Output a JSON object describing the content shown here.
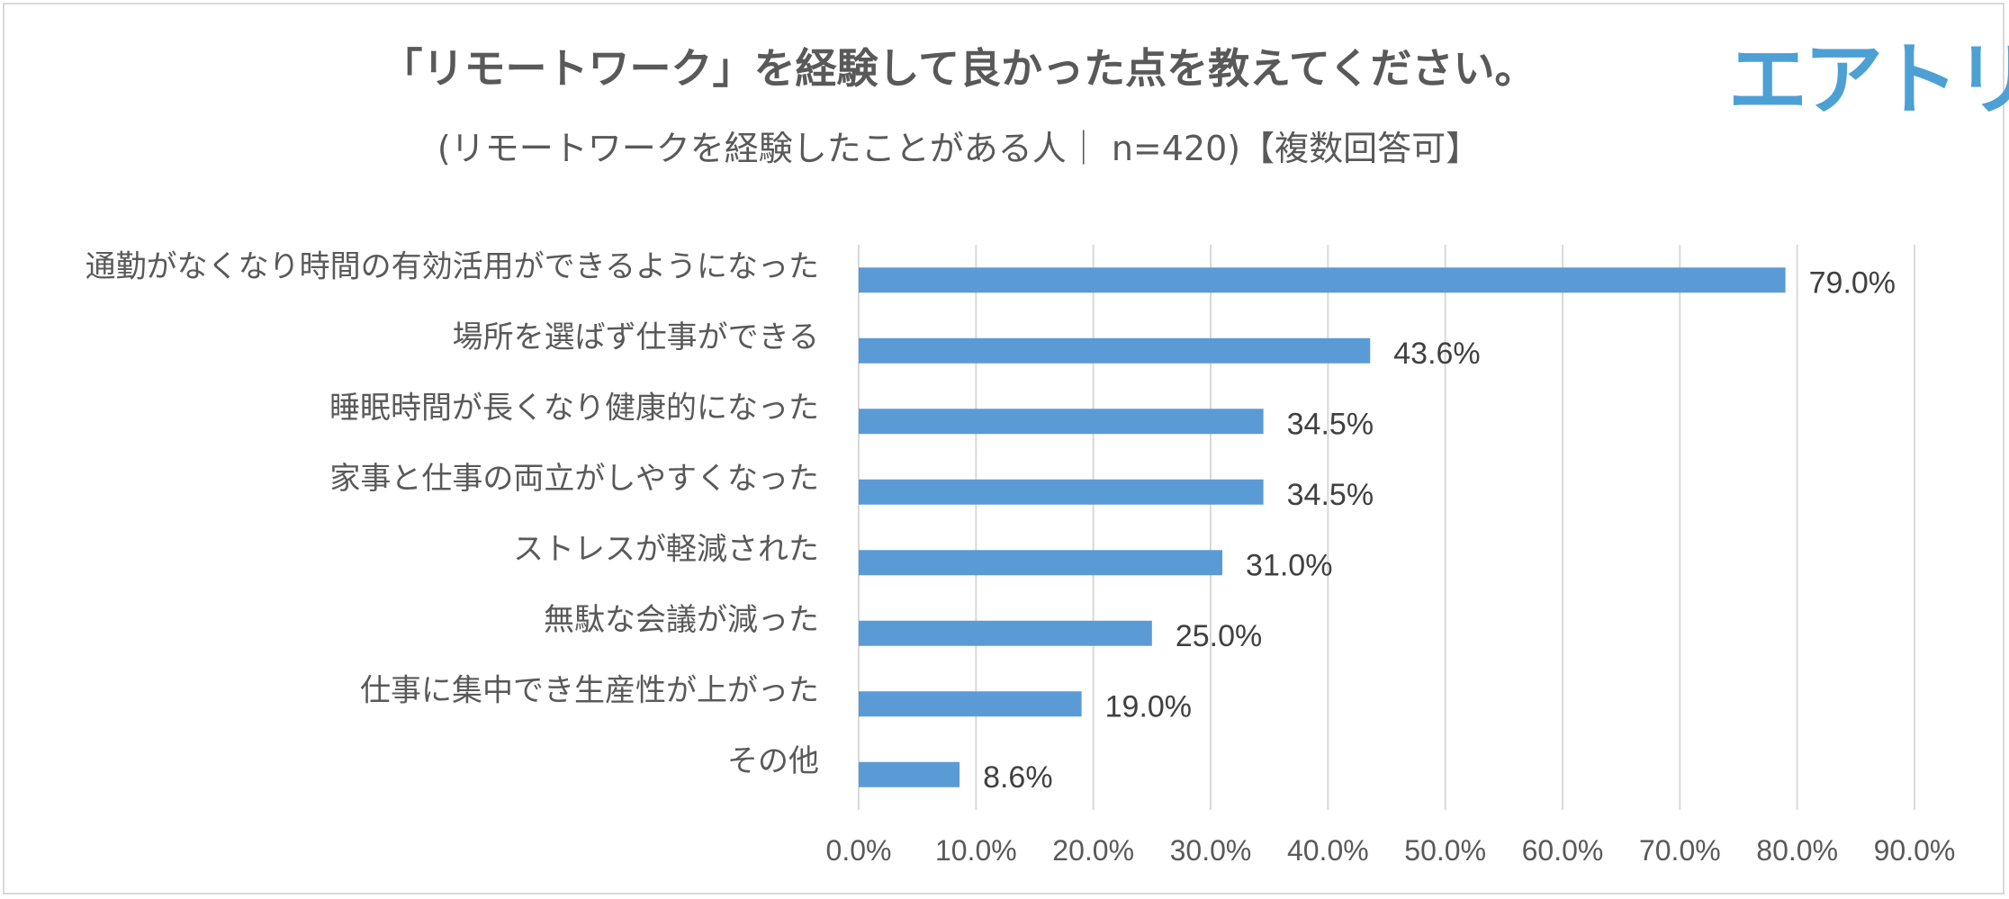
{
  "header": {
    "logo_text": "エアトリ"
  },
  "chart_data": {
    "type": "bar",
    "orientation": "horizontal",
    "title": "「リモートワーク」を経験して良かった点を教えてください。",
    "subtitle": "(リモートワークを経験したことがある人｜ n=420)【複数回答可】",
    "categories": [
      "通勤がなくなり時間の有効活用ができるようになった",
      "場所を選ばず仕事ができる",
      "睡眠時間が長くなり健康的になった",
      "家事と仕事の両立がしやすくなった",
      "ストレスが軽減された",
      "無駄な会議が減った",
      "仕事に集中でき生産性が上がった",
      "その他"
    ],
    "values": [
      79.0,
      43.6,
      34.5,
      34.5,
      31.0,
      25.0,
      19.0,
      8.6
    ],
    "value_labels": [
      "79.0%",
      "43.6%",
      "34.5%",
      "34.5%",
      "31.0%",
      "25.0%",
      "19.0%",
      "8.6%"
    ],
    "xticks": [
      "0.0%",
      "10.0%",
      "20.0%",
      "30.0%",
      "40.0%",
      "50.0%",
      "60.0%",
      "70.0%",
      "80.0%",
      "90.0%"
    ],
    "xlim": [
      0,
      90
    ],
    "xlabel": "",
    "ylabel": "",
    "grid": true,
    "legend": "none",
    "bar_color": "#5b9bd5",
    "grid_color": "#d9d9d9"
  }
}
